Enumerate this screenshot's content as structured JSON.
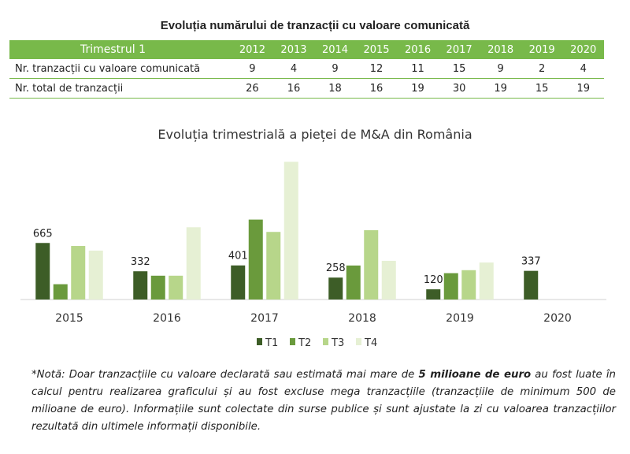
{
  "table": {
    "title": "Evoluția numărului de tranzacții cu valoare comunicată",
    "header_label": "Trimestrul 1",
    "years": [
      "2012",
      "2013",
      "2014",
      "2015",
      "2016",
      "2017",
      "2018",
      "2019",
      "2020"
    ],
    "rows": [
      {
        "label": "Nr. tranzacții cu valoare comunicată",
        "values": [
          "9",
          "4",
          "9",
          "12",
          "11",
          "15",
          "9",
          "2",
          "4"
        ]
      },
      {
        "label": "Nr. total de tranzacții",
        "values": [
          "26",
          "16",
          "18",
          "16",
          "19",
          "30",
          "19",
          "15",
          "19"
        ]
      }
    ],
    "colors": {
      "header_bg": "#78b94a",
      "border": "#78b94a"
    }
  },
  "chart_data": {
    "type": "bar",
    "title": "Evoluția trimestrială a pieței de M&A din România",
    "categories": [
      "2015",
      "2016",
      "2017",
      "2018",
      "2019",
      "2020"
    ],
    "series": [
      {
        "name": "T1",
        "color": "#3d5d27",
        "values": [
          665,
          332,
          401,
          258,
          120,
          337
        ]
      },
      {
        "name": "T2",
        "color": "#6a9a3c",
        "values": [
          180,
          280,
          940,
          400,
          310,
          null
        ]
      },
      {
        "name": "T3",
        "color": "#b7d68a",
        "values": [
          630,
          280,
          795,
          815,
          345,
          null
        ]
      },
      {
        "name": "T4",
        "color": "#e6f0d4",
        "values": [
          575,
          850,
          1620,
          455,
          435,
          null
        ]
      }
    ],
    "data_labels": [
      "665",
      "332",
      "401",
      "258",
      "120",
      "337"
    ],
    "ylim": [
      0,
      1650
    ],
    "grid": false,
    "legend_position": "bottom"
  },
  "note": {
    "prefix": "*Notă: Doar tranzacțiile cu valoare declarată sau estimată mai mare de ",
    "bold": "5 milioane de euro",
    "suffix": " au fost luate în calcul pentru realizarea graficului și au fost excluse mega tranzacțiile (tranzacțiile de minimum 500 de milioane de euro). Informațiile sunt colectate din surse publice și sunt ajustate la zi cu valoarea tranzacțiilor rezultată din ultimele informații disponibile."
  }
}
